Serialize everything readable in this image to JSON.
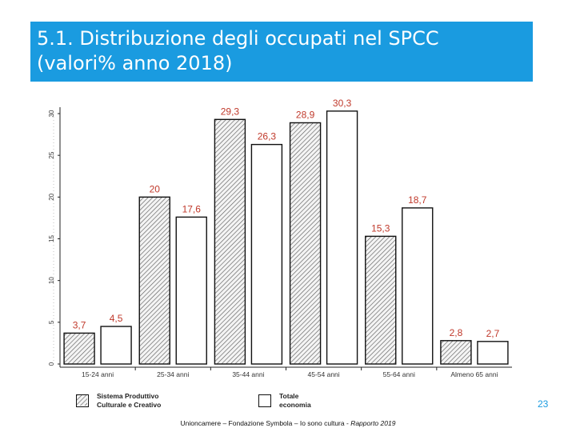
{
  "title": "5.1. Distribuzione degli occupati nel SPCC\n(valori% anno 2018)",
  "chart_data": {
    "type": "bar",
    "categories": [
      "15-24 anni",
      "25-34 anni",
      "35-44 anni",
      "45-54 anni",
      "55-64 anni",
      "Almeno 65 anni"
    ],
    "series": [
      {
        "name": "Sistema Produttivo Culturale e Creativo",
        "values": [
          3.7,
          20,
          29.3,
          28.9,
          15.3,
          2.8
        ],
        "labels": [
          "3,7",
          "20",
          "29,3",
          "28,9",
          "15,3",
          "2,8"
        ]
      },
      {
        "name": "Totale economia",
        "values": [
          4.5,
          17.6,
          26.3,
          30.3,
          18.7,
          2.7
        ],
        "labels": [
          "4,5",
          "17,6",
          "26,3",
          "30,3",
          "18,7",
          "2,7"
        ]
      }
    ],
    "yticks": [
      "0",
      "5",
      "10",
      "15",
      "20",
      "25",
      "30"
    ],
    "ylim": [
      0,
      30
    ],
    "grid": false,
    "legend_position": "bottom",
    "colors": {
      "label": "#c0392b",
      "bar_outline": "#111111",
      "hatch": "#555555",
      "fill_plain": "#ffffff"
    }
  },
  "legend": {
    "item1": "Sistema Produttivo\nCulturale e Creativo",
    "item2": "Totale\neconomia"
  },
  "slide_number": "23",
  "footer": {
    "text": "Unioncamere – Fondazione Symbola – Io sono cultura -",
    "italic": "Rapporto 2019"
  }
}
